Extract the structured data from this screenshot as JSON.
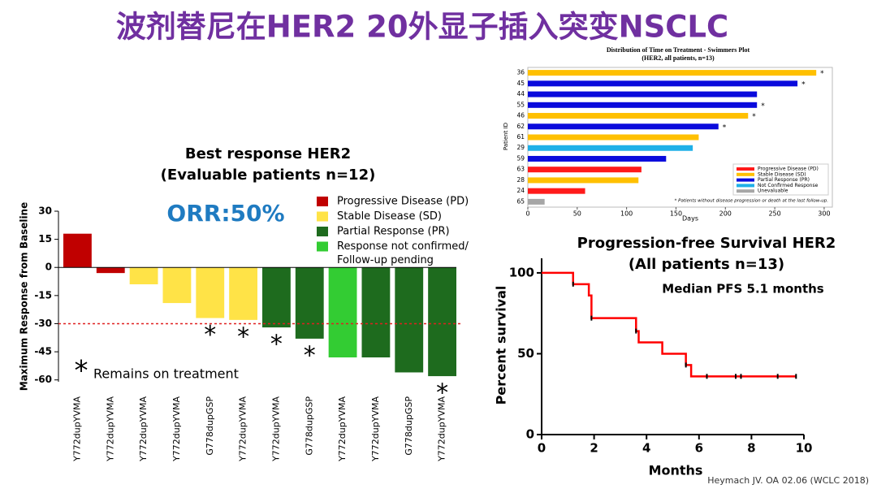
{
  "title": "波剂替尼在HER2 20外显子插入突变NSCLC",
  "citation": "Heymach JV. OA 02.06  (WCLC 2018)",
  "chart_data": [
    {
      "type": "bar",
      "title": "Best response HER2",
      "subtitle": "(Evaluable patients n=12)",
      "annotation_orr": "ORR:50%",
      "ylabel": "Maximum Response from  Baseline",
      "categories": [
        "Y772dupYVMA",
        "Y772dupYVMA",
        "Y772dupYVMA",
        "Y772dupYVMA",
        "G778dupGSP",
        "Y772dupYVMA",
        "Y772dupYVMA",
        "G778dupGSP",
        "Y772dupYVMA",
        "Y772dupYVMA",
        "G778dupGSP",
        "Y772dupYVMA"
      ],
      "values": [
        18,
        -3,
        -9,
        -19,
        -27,
        -28,
        -32,
        -38,
        -48,
        -48,
        -56,
        -58
      ],
      "colors": [
        "#c00000",
        "#c00000",
        "#ffe347",
        "#ffe347",
        "#ffe347",
        "#ffe347",
        "#1e6b1e",
        "#1e6b1e",
        "#33cc33",
        "#1e6b1e",
        "#1e6b1e",
        "#1e6b1e"
      ],
      "on_treatment": [
        false,
        false,
        false,
        false,
        true,
        true,
        true,
        true,
        false,
        false,
        false,
        true
      ],
      "marker": "*",
      "annotation": "Remains on treatment",
      "reference_line": -30,
      "reference_color": "#e02020",
      "ylim": [
        -61,
        30
      ],
      "yticks": [
        30,
        15,
        0,
        -15,
        -30,
        -45,
        -60
      ],
      "legend": [
        {
          "name": [
            "Progressive Disease (PD)"
          ],
          "color": "#c00000"
        },
        {
          "name": [
            "Stable Disease (SD)"
          ],
          "color": "#ffe347"
        },
        {
          "name": [
            "Partial Response (PR)"
          ],
          "color": "#1e6b1e"
        },
        {
          "name": [
            "Response not confirmed/",
            "Follow-up pending"
          ],
          "color": "#33cc33"
        }
      ]
    },
    {
      "type": "barh",
      "title": "Distribution of Time on Treatment - Swimmers Plot",
      "subtitle": "(HER2, all patients, n=13)",
      "ylabel": "Patient ID",
      "xlabel": "Days",
      "categories": [
        "36",
        "45",
        "44",
        "55",
        "46",
        "62",
        "61",
        "29",
        "59",
        "63",
        "28",
        "24",
        "65"
      ],
      "values": [
        292,
        273,
        232,
        232,
        223,
        193,
        173,
        167,
        140,
        115,
        112,
        58,
        17
      ],
      "colors": [
        "#ffc000",
        "#0a0adc",
        "#0a0adc",
        "#0a0adc",
        "#ffc000",
        "#0a0adc",
        "#ffc000",
        "#1fb0e8",
        "#0a0adc",
        "#ff1a1a",
        "#ffc000",
        "#ff1a1a",
        "#a6a6a6"
      ],
      "on_treatment": [
        true,
        true,
        false,
        true,
        true,
        true,
        false,
        false,
        false,
        false,
        false,
        false,
        false
      ],
      "marker": "*",
      "xlim": [
        0,
        305
      ],
      "xticks": [
        0,
        50,
        100,
        150,
        200,
        250,
        300
      ],
      "legend": [
        {
          "name": "Progressive Disease (PD)",
          "color": "#ff1a1a"
        },
        {
          "name": "Stable Disease (SD)",
          "color": "#ffc000"
        },
        {
          "name": "Partial Response (PR)",
          "color": "#0a0adc"
        },
        {
          "name": "Not Confirmed Response",
          "color": "#1fb0e8"
        },
        {
          "name": "Unevaluable",
          "color": "#a6a6a6"
        }
      ],
      "note": "* Patients without disease progression or death at the last follow-up."
    },
    {
      "type": "line",
      "title": "Progression-free Survival HER2",
      "subtitle": "(All patients n=13)",
      "annotation": "Median PFS 5.1 months",
      "xlabel": "Months",
      "ylabel": "Percent survival",
      "series": [
        {
          "name": "PFS",
          "color": "#ff0000",
          "x": [
            0,
            1.2,
            1.2,
            1.8,
            1.8,
            1.9,
            1.9,
            3.6,
            3.6,
            3.7,
            3.7,
            4.6,
            4.6,
            5.5,
            5.5,
            5.7,
            5.7,
            9.7
          ],
          "values": [
            100,
            100,
            93,
            93,
            86,
            86,
            72,
            72,
            64,
            64,
            57,
            57,
            50,
            50,
            43,
            43,
            36,
            36
          ]
        }
      ],
      "censored": {
        "x": [
          1.2,
          1.9,
          3.6,
          5.5,
          6.3,
          7.4,
          7.6,
          9.0,
          9.7
        ],
        "values": [
          93,
          72,
          64,
          43,
          36,
          36,
          36,
          36,
          36
        ]
      },
      "xlim": [
        0,
        10
      ],
      "ylim": [
        0,
        109
      ],
      "xticks": [
        0,
        2,
        4,
        6,
        8,
        10
      ],
      "yticks": [
        0,
        50,
        100
      ]
    }
  ]
}
